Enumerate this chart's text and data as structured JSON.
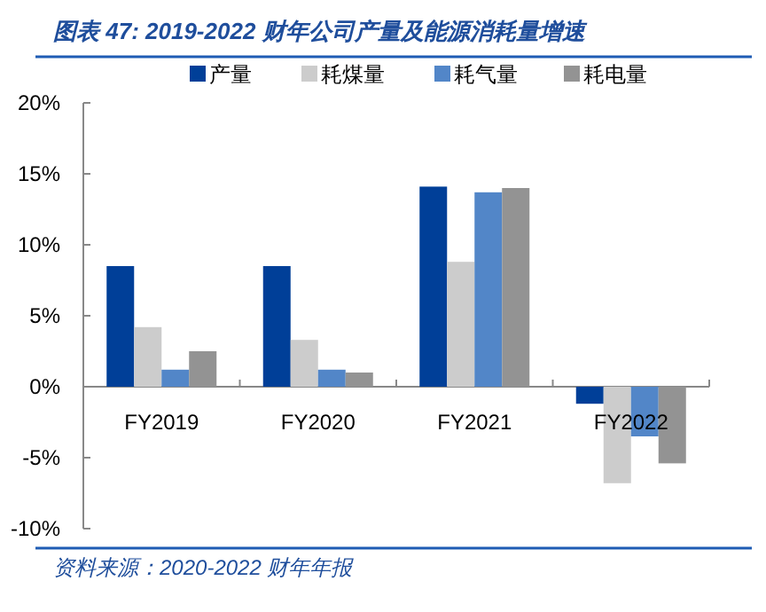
{
  "chart_data": {
    "type": "bar",
    "title": "图表 47:  2019-2022 财年公司产量及能源消耗量增速",
    "categories": [
      "FY2019",
      "FY2020",
      "FY2021",
      "FY2022"
    ],
    "series": [
      {
        "name": "产量",
        "color": "#003f98",
        "values": [
          8.5,
          8.5,
          14.1,
          -1.2
        ]
      },
      {
        "name": "耗煤量",
        "color": "#cccccc",
        "values": [
          4.2,
          3.3,
          8.8,
          -6.8
        ]
      },
      {
        "name": "耗气量",
        "color": "#5286c8",
        "values": [
          1.2,
          1.2,
          13.7,
          -3.5
        ]
      },
      {
        "name": "耗电量",
        "color": "#939393",
        "values": [
          2.5,
          1.0,
          14.0,
          -5.4
        ]
      }
    ],
    "ylim": [
      -10,
      20
    ],
    "yticks": [
      {
        "value": -10,
        "label": "-10%"
      },
      {
        "value": -5,
        "label": "-5%"
      },
      {
        "value": 0,
        "label": "0%"
      },
      {
        "value": 5,
        "label": "5%"
      },
      {
        "value": 10,
        "label": "10%"
      },
      {
        "value": 15,
        "label": "15%"
      },
      {
        "value": 20,
        "label": "20%"
      }
    ],
    "legend": "top",
    "annotations": [
      "资料来源：2020-2022 财年年报"
    ]
  }
}
